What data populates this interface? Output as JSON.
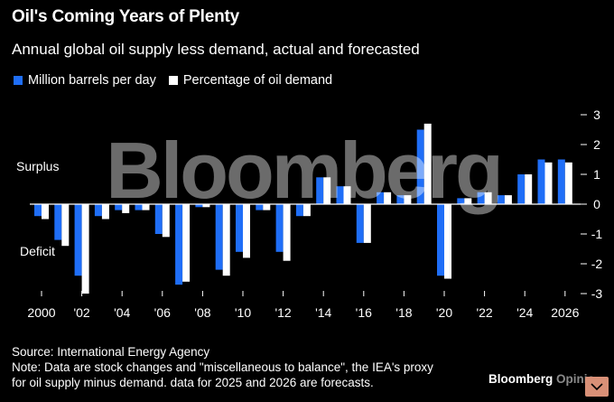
{
  "title": "Oil's Coming Years of Plenty",
  "subtitle": "Annual global oil supply less demand, actual and forecasted",
  "legend": {
    "series1": "Million barrels per day",
    "series2": "Percentage of oil demand"
  },
  "labels": {
    "surplus": "Surplus",
    "deficit": "Deficit"
  },
  "watermark": "Bloomberg",
  "source": "Source: International Energy Agency",
  "note1": "Note: Data are stock changes and \"miscellaneous to balance\", the IEA's proxy",
  "note2": "for oil supply minus demand. data for 2025 and 2026 are forecasts.",
  "brand": {
    "name": "Bloomberg",
    "suffix": "Opinio"
  },
  "colors": {
    "blue": "#1f6ef7",
    "white": "#ffffff",
    "background": "#000000"
  },
  "chart_data": {
    "type": "bar",
    "categories": [
      "2000",
      "2001",
      "2002",
      "2003",
      "2004",
      "2005",
      "2006",
      "2007",
      "2008",
      "2009",
      "2010",
      "2011",
      "2012",
      "2013",
      "2014",
      "2015",
      "2016",
      "2017",
      "2018",
      "2019",
      "2020",
      "2021",
      "2022",
      "2023",
      "2024",
      "2025",
      "2026"
    ],
    "x_tick_labels": [
      "2000",
      "'02",
      "'04",
      "'06",
      "'08",
      "'10",
      "'12",
      "'14",
      "'16",
      "'18",
      "'20",
      "'22",
      "'24",
      "2026"
    ],
    "series": [
      {
        "name": "Million barrels per day",
        "values": [
          -0.4,
          -1.2,
          -2.4,
          -0.4,
          -0.2,
          -0.2,
          -1.0,
          -2.7,
          -0.1,
          -2.2,
          -1.6,
          -0.2,
          -1.6,
          -0.4,
          0.9,
          0.6,
          -1.3,
          0.4,
          0.3,
          2.5,
          -2.4,
          0.2,
          0.4,
          0.3,
          1.0,
          1.5,
          1.5
        ]
      },
      {
        "name": "Percentage of oil demand",
        "values": [
          -0.5,
          -1.4,
          -3.0,
          -0.5,
          -0.3,
          -0.2,
          -1.1,
          -2.6,
          -0.1,
          -2.4,
          -1.8,
          -0.2,
          -1.9,
          -0.4,
          0.9,
          0.6,
          -1.3,
          0.4,
          0.3,
          2.7,
          -2.5,
          0.2,
          0.4,
          0.3,
          1.0,
          1.4,
          1.4
        ]
      }
    ],
    "y_ticks": [
      "3",
      "2",
      "1",
      "0",
      "-1",
      "-2",
      "-3"
    ],
    "ylim": [
      -3.3,
      3.3
    ],
    "xlabel": "",
    "ylabel": ""
  }
}
